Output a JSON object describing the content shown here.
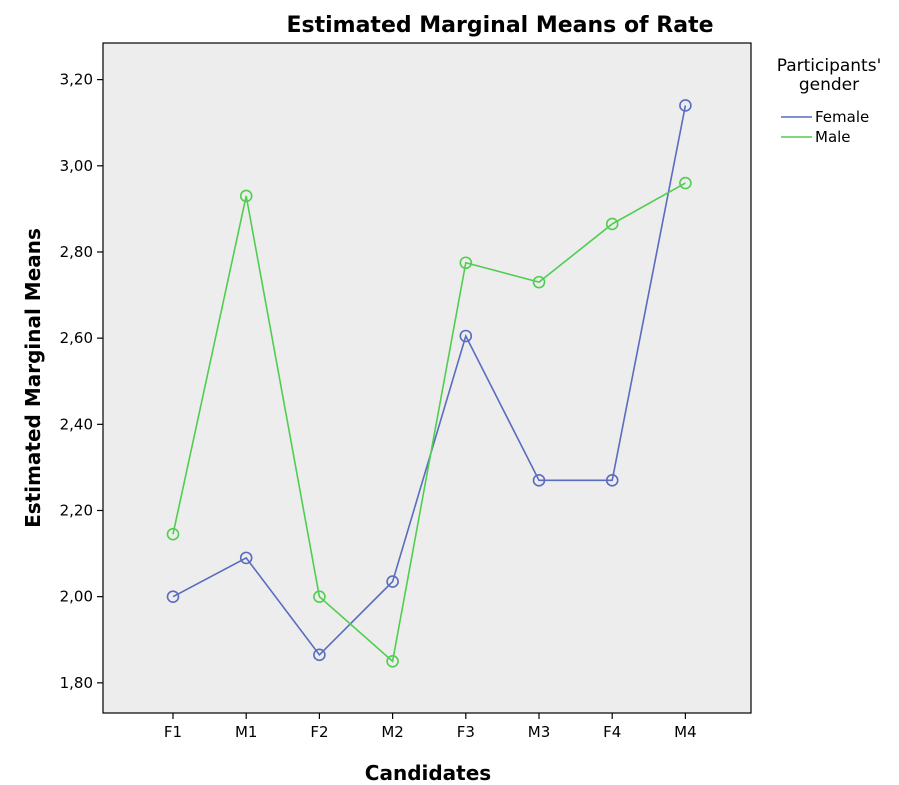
{
  "chart_data": {
    "type": "line",
    "title": "Estimated Marginal Means of Rate",
    "xlabel": "Candidates",
    "ylabel": "Estimated Marginal Means",
    "categories": [
      "F1",
      "M1",
      "F2",
      "M2",
      "F3",
      "M3",
      "F4",
      "M4"
    ],
    "y_ticks": [
      "1,80",
      "2,00",
      "2,20",
      "2,40",
      "2,60",
      "2,80",
      "3,00",
      "3,20"
    ],
    "ylim": [
      1.73,
      3.285
    ],
    "legend": {
      "title_line1": "Participants'",
      "title_line2": "gender",
      "placement": "right"
    },
    "series": [
      {
        "name": "Female",
        "color": "#5a6cc0",
        "values": [
          2.0,
          2.09,
          1.865,
          2.035,
          2.605,
          2.27,
          2.27,
          3.14
        ]
      },
      {
        "name": "Male",
        "color": "#4fce4f",
        "values": [
          2.145,
          2.93,
          2.0,
          1.85,
          2.775,
          2.73,
          2.865,
          2.96
        ]
      }
    ],
    "grid": false,
    "plot_background": "#ededed"
  }
}
